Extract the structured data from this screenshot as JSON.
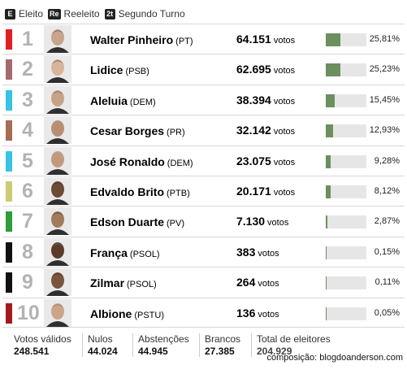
{
  "legend": [
    {
      "badge": "E",
      "label": "Eleito"
    },
    {
      "badge": "Re",
      "label": "Reeleito"
    },
    {
      "badge": "2t",
      "label": "Segundo Turno"
    }
  ],
  "votes_unit": "votos",
  "candidates": [
    {
      "rank": "1",
      "name": "Walter Pinheiro",
      "party": "(PT)",
      "votes": "64.151",
      "pct": "25,81%",
      "pct_value": 25.81,
      "color": "#e11f26"
    },
    {
      "rank": "2",
      "name": "Lidice",
      "party": "(PSB)",
      "votes": "62.695",
      "pct": "25,23%",
      "pct_value": 25.23,
      "color": "#a36b6f"
    },
    {
      "rank": "3",
      "name": "Aleluia",
      "party": "(DEM)",
      "votes": "38.394",
      "pct": "15,45%",
      "pct_value": 15.45,
      "color": "#36c3e6"
    },
    {
      "rank": "4",
      "name": "Cesar Borges",
      "party": "(PR)",
      "votes": "32.142",
      "pct": "12,93%",
      "pct_value": 12.93,
      "color": "#a46e52"
    },
    {
      "rank": "5",
      "name": "José Ronaldo",
      "party": "(DEM)",
      "votes": "23.075",
      "pct": "9,28%",
      "pct_value": 9.28,
      "color": "#36c3e6"
    },
    {
      "rank": "6",
      "name": "Edvaldo Brito",
      "party": "(PTB)",
      "votes": "20.171",
      "pct": "8,12%",
      "pct_value": 8.12,
      "color": "#cccc74"
    },
    {
      "rank": "7",
      "name": "Edson Duarte",
      "party": "(PV)",
      "votes": "7.130",
      "pct": "2,87%",
      "pct_value": 2.87,
      "color": "#2e9d3a"
    },
    {
      "rank": "8",
      "name": "França",
      "party": "(PSOL)",
      "votes": "383",
      "pct": "0,15%",
      "pct_value": 0.15,
      "color": "#111111"
    },
    {
      "rank": "9",
      "name": "Zilmar",
      "party": "(PSOL)",
      "votes": "264",
      "pct": "0,11%",
      "pct_value": 0.11,
      "color": "#111111"
    },
    {
      "rank": "10",
      "name": "Albione",
      "party": "(PSTU)",
      "votes": "136",
      "pct": "0,05%",
      "pct_value": 0.05,
      "color": "#a21a1e"
    }
  ],
  "footer": {
    "valid": {
      "label": "Votos válidos",
      "value": "248.541"
    },
    "null": {
      "label": "Nulos",
      "value": "44.024"
    },
    "abstentions": {
      "label": "Abstenções",
      "value": "44.945"
    },
    "blank": {
      "label": "Brancos",
      "value": "27.385"
    },
    "total": {
      "label": "Total de eleitores",
      "value": "204.929"
    },
    "credit": "composição: blogdoanderson.com"
  }
}
